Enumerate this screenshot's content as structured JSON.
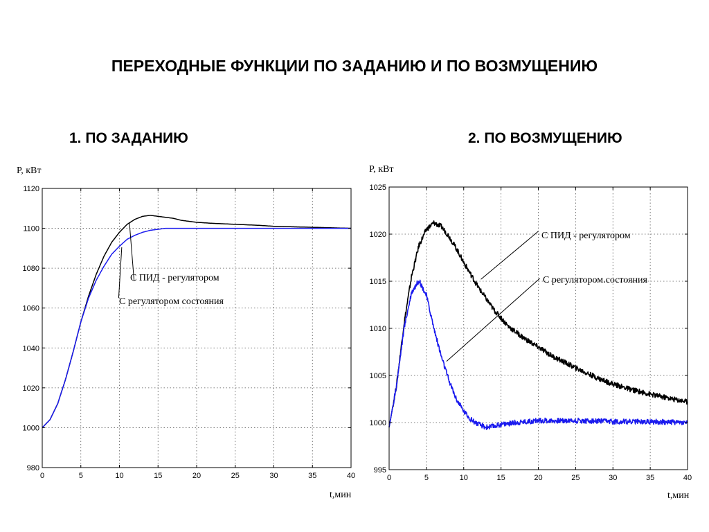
{
  "page": {
    "title": "ПЕРЕХОДНЫЕ ФУНКЦИИ ПО ЗАДАНИЮ И ПО ВОЗМУЩЕНИЮ",
    "subtitle_left": "1. ПО ЗАДАНИЮ",
    "subtitle_right": "2. ПО ВОЗМУЩЕНИЮ"
  },
  "chart_data": [
    {
      "type": "line",
      "ylabel": "P, кВт",
      "xlabel": "t,мин",
      "xlim": [
        0,
        40
      ],
      "ylim": [
        980,
        1120
      ],
      "xticks": [
        0,
        5,
        10,
        15,
        20,
        25,
        30,
        35,
        40
      ],
      "yticks": [
        980,
        1000,
        1020,
        1040,
        1060,
        1080,
        1100,
        1120
      ],
      "grid": true,
      "series": [
        {
          "name": "С ПИД - регулятором",
          "color": "#000000",
          "x": [
            0,
            1,
            2,
            3,
            4,
            5,
            6,
            7,
            8,
            9,
            10,
            11,
            12,
            13,
            14,
            15,
            16,
            17,
            18,
            20,
            22,
            25,
            28,
            30,
            35,
            40
          ],
          "values": [
            1000,
            1004,
            1012,
            1024,
            1038,
            1053,
            1066,
            1077,
            1086,
            1093,
            1098,
            1102,
            1104.5,
            1106,
            1106.5,
            1106,
            1105.5,
            1105,
            1104,
            1103,
            1102.5,
            1102,
            1101.5,
            1101,
            1100.5,
            1100
          ]
        },
        {
          "name": "С регулятором состояния",
          "color": "#1a1aee",
          "x": [
            0,
            1,
            2,
            3,
            4,
            5,
            6,
            7,
            8,
            9,
            10,
            11,
            12,
            13,
            14,
            15,
            16,
            18,
            20,
            25,
            30,
            35,
            40
          ],
          "values": [
            1000,
            1004,
            1012,
            1024,
            1038,
            1053,
            1065,
            1074,
            1081,
            1087,
            1091,
            1094.5,
            1096.5,
            1098,
            1099,
            1099.5,
            1100,
            1100,
            1100,
            1100,
            1100,
            1100,
            1100
          ]
        }
      ],
      "annotations": [
        "С ПИД - регулятором",
        "С регулятором состояния"
      ]
    },
    {
      "type": "line",
      "ylabel": "P, кВт",
      "xlabel": "t,мин",
      "xlim": [
        0,
        40
      ],
      "ylim": [
        995,
        1025
      ],
      "xticks": [
        0,
        5,
        10,
        15,
        20,
        25,
        30,
        35,
        40
      ],
      "yticks": [
        995,
        1000,
        1005,
        1010,
        1015,
        1020,
        1025
      ],
      "grid": true,
      "series": [
        {
          "name": "С ПИД - регулятором",
          "color": "#000000",
          "x": [
            0,
            1,
            2,
            3,
            4,
            5,
            6,
            7,
            8,
            9,
            10,
            12,
            14,
            16,
            18,
            20,
            22,
            25,
            28,
            30,
            32,
            35,
            38,
            40
          ],
          "values": [
            999.5,
            1004,
            1010.5,
            1015.5,
            1018.8,
            1020.5,
            1021.2,
            1020.8,
            1019.8,
            1018.5,
            1017,
            1014.3,
            1012,
            1010.2,
            1009,
            1008,
            1007,
            1005.8,
            1004.7,
            1004.1,
            1003.6,
            1003,
            1002.5,
            1002.2
          ]
        },
        {
          "name": "С регулятором состояния",
          "color": "#1a1aee",
          "x": [
            0,
            1,
            2,
            3,
            4,
            5,
            6,
            7,
            8,
            9,
            10,
            11,
            12,
            13,
            14,
            15,
            17,
            20,
            25,
            30,
            35,
            40
          ],
          "values": [
            999.5,
            1004,
            1010,
            1013.8,
            1015.1,
            1013.5,
            1010,
            1007,
            1004.5,
            1002.5,
            1001.2,
            1000.3,
            999.8,
            999.5,
            999.6,
            999.8,
            1000,
            1000.2,
            1000.2,
            1000.1,
            1000.1,
            1000
          ]
        }
      ],
      "annotations": [
        "С ПИД - регулятором",
        "С регулятором.состояния"
      ]
    }
  ]
}
